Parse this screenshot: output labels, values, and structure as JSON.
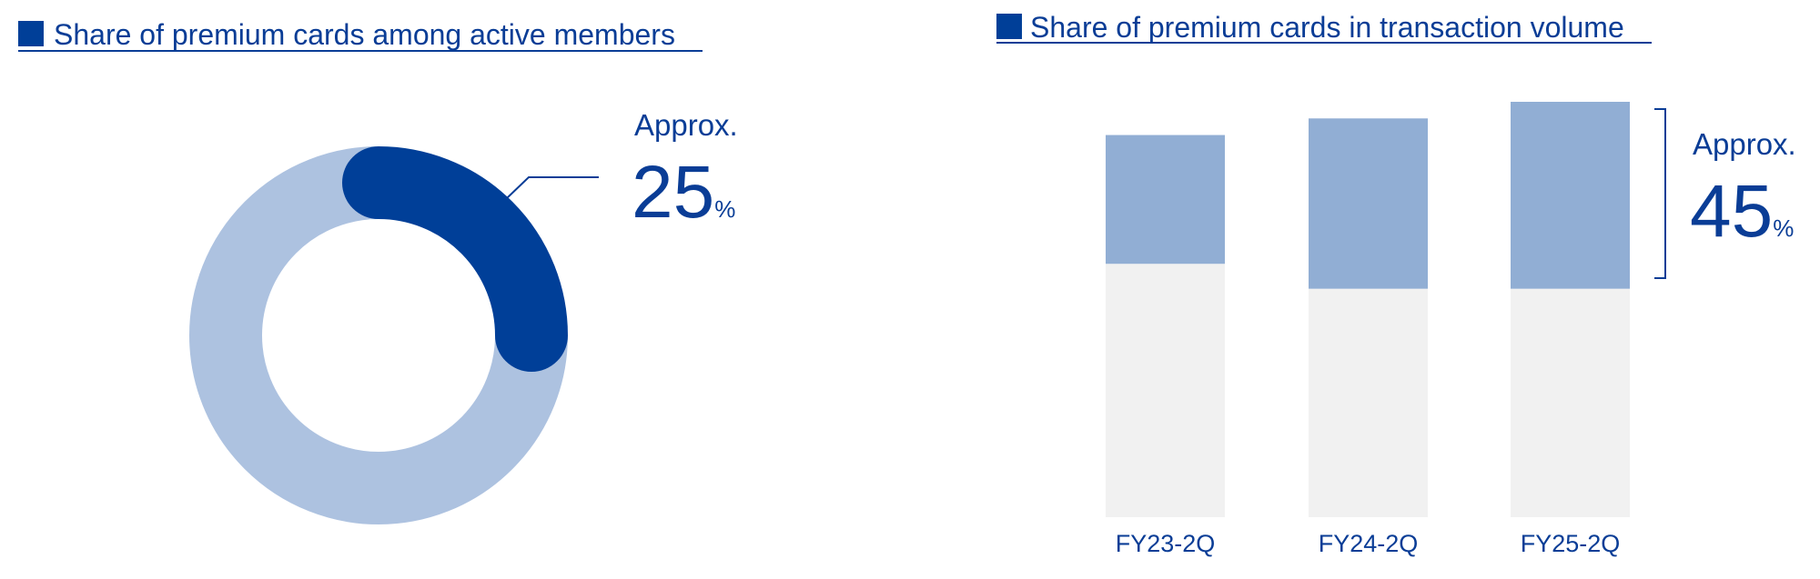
{
  "chart_data": [
    {
      "type": "pie",
      "title": "Share of premium cards among active members",
      "values": [
        25,
        75
      ],
      "colors": [
        "#003f98",
        "#adc2e0"
      ],
      "annotation": {
        "prefix": "Approx.",
        "unit": "%"
      }
    },
    {
      "type": "bar",
      "stacked": true,
      "title": "Share of premium cards in transaction volume",
      "categories": [
        "FY23-2Q",
        "FY24-2Q",
        "FY25-2Q"
      ],
      "series": [
        {
          "color": "#91aed4",
          "values": [
            31,
            41,
            45
          ]
        },
        {
          "color": "#f1f1f1",
          "values": [
            61,
            55,
            55
          ]
        }
      ],
      "ylim": [
        0,
        100
      ],
      "annotation": {
        "prefix": "Approx.",
        "unit": "%"
      }
    }
  ]
}
